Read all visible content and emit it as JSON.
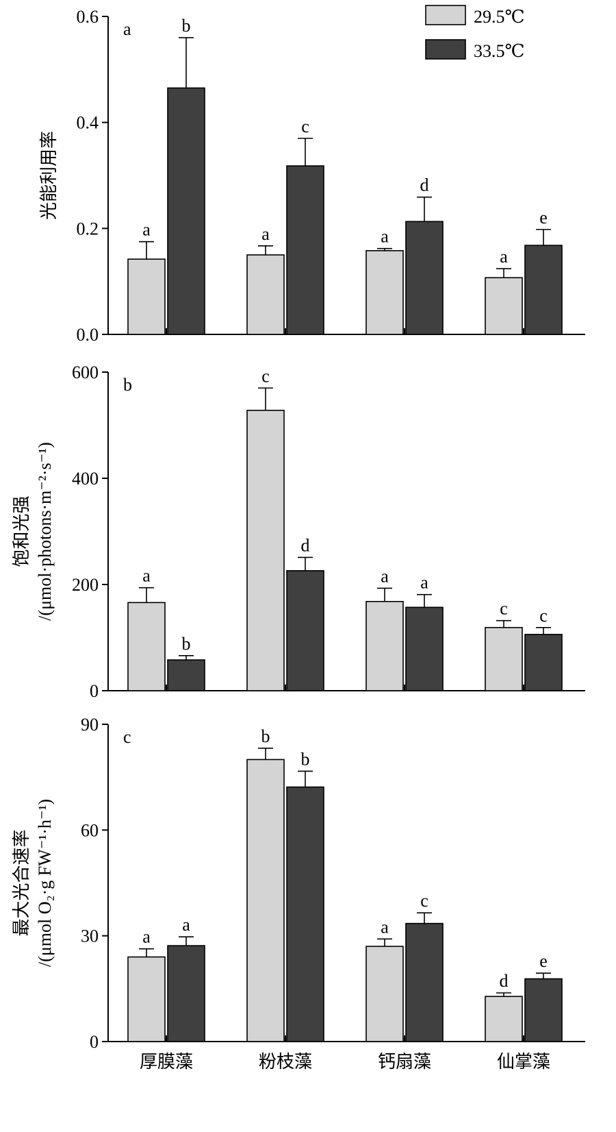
{
  "chart_data": [
    {
      "type": "bar",
      "panel_letter": "a",
      "ylabel_lines": [
        "光能利用率"
      ],
      "ylim": [
        0,
        0.6
      ],
      "yticks": [
        0,
        0.2,
        0.4,
        0.6
      ],
      "ytick_labels": [
        "0.0",
        "0.2",
        "0.4",
        "0.6"
      ],
      "categories": [
        "厚膜藻",
        "粉枝藻",
        "钙扇藻",
        "仙掌藻"
      ],
      "series": [
        {
          "name": "29.5℃",
          "color": "#d4d4d4",
          "values": [
            0.142,
            0.15,
            0.158,
            0.107
          ],
          "errors": [
            0.033,
            0.017,
            0.004,
            0.017
          ],
          "labels": [
            "a",
            "a",
            "a",
            "a"
          ]
        },
        {
          "name": "33.5℃",
          "color": "#404040",
          "values": [
            0.465,
            0.318,
            0.213,
            0.168
          ],
          "errors": [
            0.095,
            0.052,
            0.046,
            0.03
          ],
          "labels": [
            "b",
            "c",
            "d",
            "e"
          ]
        }
      ],
      "legend_position": "top-right"
    },
    {
      "type": "bar",
      "panel_letter": "b",
      "ylabel_lines": [
        "饱和光强",
        "/(μmol·photons·m⁻²·s⁻¹)"
      ],
      "ylim": [
        0,
        600
      ],
      "yticks": [
        0,
        200,
        400,
        600
      ],
      "ytick_labels": [
        "0",
        "200",
        "400",
        "600"
      ],
      "categories": [
        "厚膜藻",
        "粉枝藻",
        "钙扇藻",
        "仙掌藻"
      ],
      "series": [
        {
          "name": "29.5℃",
          "color": "#d4d4d4",
          "values": [
            166,
            528,
            168,
            119
          ],
          "errors": [
            28,
            42,
            25,
            13
          ],
          "labels": [
            "a",
            "c",
            "a",
            "c"
          ]
        },
        {
          "name": "33.5℃",
          "color": "#404040",
          "values": [
            58,
            226,
            157,
            106
          ],
          "errors": [
            8,
            25,
            24,
            13
          ],
          "labels": [
            "b",
            "d",
            "a",
            "c"
          ]
        }
      ]
    },
    {
      "type": "bar",
      "panel_letter": "c",
      "ylabel_lines": [
        "最大光合速率",
        "/(μmol O₂·g FW⁻¹·h⁻¹)"
      ],
      "ylim": [
        0,
        90
      ],
      "yticks": [
        0,
        30,
        60,
        90
      ],
      "ytick_labels": [
        "0",
        "30",
        "60",
        "90"
      ],
      "categories": [
        "厚膜藻",
        "粉枝藻",
        "钙扇藻",
        "仙掌藻"
      ],
      "series": [
        {
          "name": "29.5℃",
          "color": "#d4d4d4",
          "values": [
            24,
            80,
            27,
            12.8
          ],
          "errors": [
            2.3,
            3.2,
            2.1,
            1.0
          ],
          "labels": [
            "a",
            "b",
            "a",
            "d"
          ]
        },
        {
          "name": "33.5℃",
          "color": "#404040",
          "values": [
            27.2,
            72.2,
            33.5,
            17.8
          ],
          "errors": [
            2.5,
            4.5,
            3.0,
            1.6
          ],
          "labels": [
            "a",
            "b",
            "c",
            "e"
          ]
        }
      ]
    }
  ]
}
